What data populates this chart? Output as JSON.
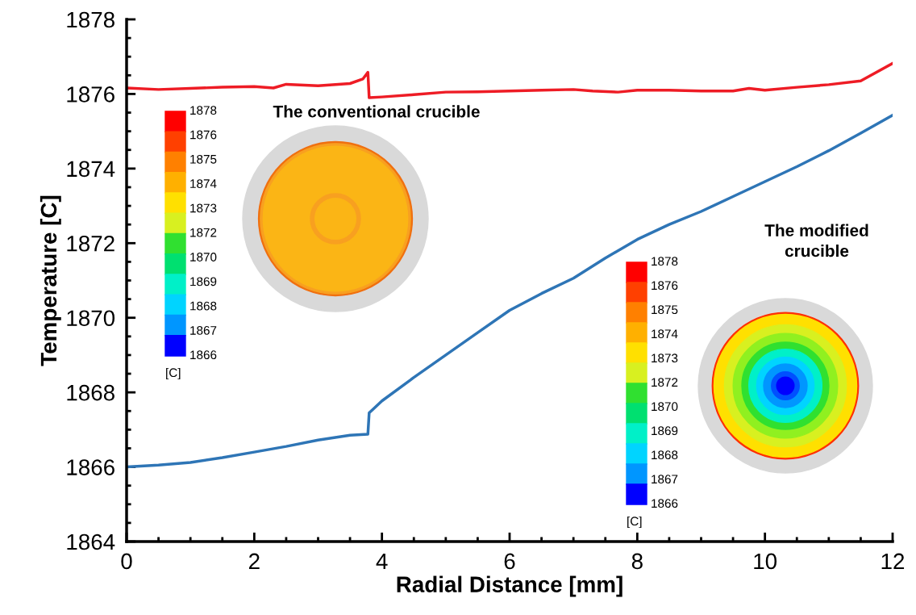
{
  "chart_data": {
    "type": "line",
    "xlabel": "Radial Distance [mm]",
    "ylabel": "Temperature [C]",
    "xlim": [
      0,
      12
    ],
    "xticks": [
      0,
      2,
      4,
      6,
      8,
      10,
      12
    ],
    "ylim": [
      1864,
      1878
    ],
    "yticks": [
      1864,
      1866,
      1868,
      1870,
      1872,
      1874,
      1876,
      1878
    ],
    "grid": false,
    "legend": false,
    "marker": "none",
    "line_style": "solid",
    "series": [
      {
        "color": "#ee1c25",
        "x": [
          0,
          0.5,
          1,
          1.5,
          2,
          2.3,
          2.5,
          3,
          3.5,
          3.7,
          3.78,
          3.8,
          4,
          4.5,
          5,
          5.5,
          6,
          6.5,
          7,
          7.3,
          7.7,
          8,
          8.5,
          9,
          9.5,
          9.75,
          10,
          10.5,
          11,
          11.5,
          12
        ],
        "values": [
          1876.16,
          1876.12,
          1876.15,
          1876.18,
          1876.2,
          1876.16,
          1876.26,
          1876.22,
          1876.28,
          1876.4,
          1876.58,
          1875.9,
          1875.92,
          1875.98,
          1876.05,
          1876.06,
          1876.08,
          1876.1,
          1876.12,
          1876.08,
          1876.05,
          1876.1,
          1876.1,
          1876.08,
          1876.08,
          1876.15,
          1876.1,
          1876.18,
          1876.25,
          1876.35,
          1876.82
        ]
      },
      {
        "color": "#2e75b6",
        "x": [
          0,
          0.5,
          1,
          1.5,
          2,
          2.5,
          3,
          3.5,
          3.78,
          3.8,
          4,
          4.5,
          5,
          5.5,
          6,
          6.5,
          7,
          7.5,
          8,
          8.5,
          9,
          9.5,
          10,
          10.5,
          11,
          11.5,
          12
        ],
        "values": [
          1866.0,
          1866.05,
          1866.12,
          1866.25,
          1866.4,
          1866.55,
          1866.72,
          1866.85,
          1866.88,
          1867.45,
          1867.77,
          1868.4,
          1869.0,
          1869.6,
          1870.2,
          1870.65,
          1871.06,
          1871.6,
          1872.1,
          1872.5,
          1872.85,
          1873.25,
          1873.65,
          1874.05,
          1874.48,
          1874.95,
          1875.43
        ]
      }
    ],
    "annotations": [
      "The conventional crucible",
      "1878",
      "1876",
      "1875",
      "1874",
      "1873",
      "1872",
      "1870",
      "1869",
      "1868",
      "1867",
      "1866",
      "[C]",
      "The modified\ncrucible",
      "1878",
      "1876",
      "1875",
      "1874",
      "1873",
      "1872",
      "1870",
      "1869",
      "1868",
      "1867",
      "1866",
      "[C]"
    ]
  }
}
